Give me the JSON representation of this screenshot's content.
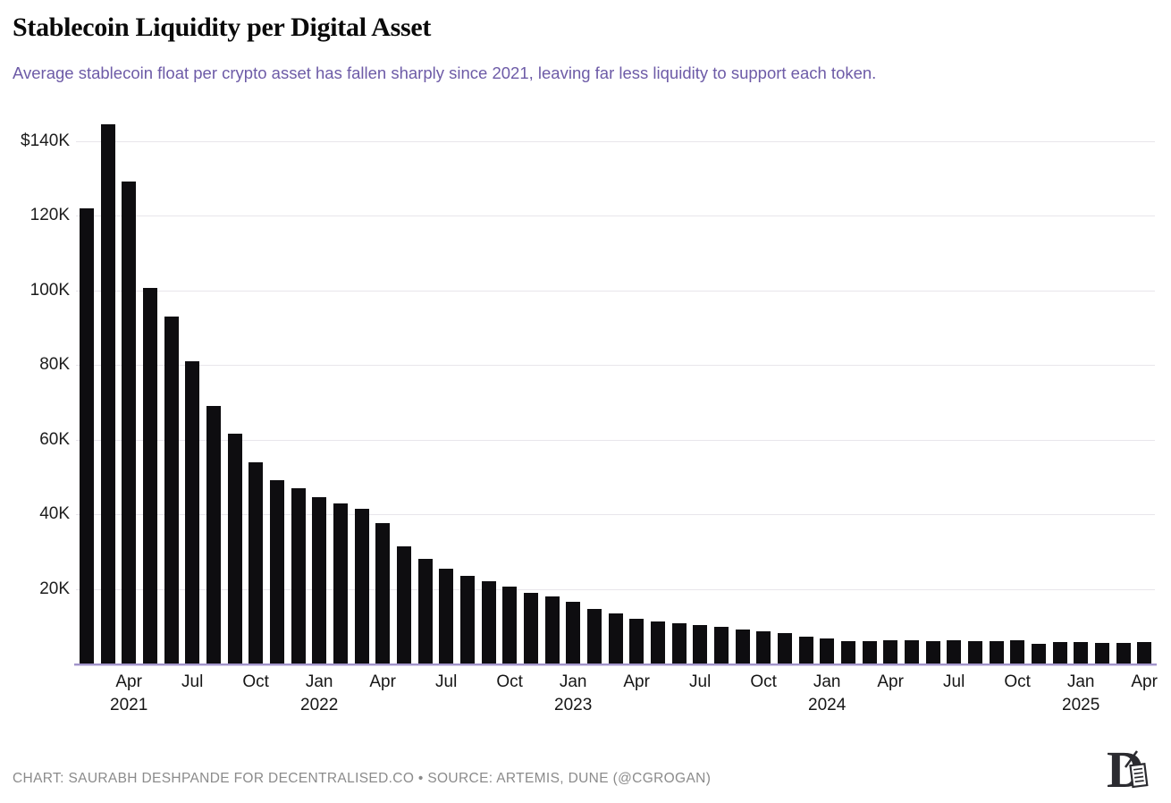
{
  "header": {
    "title": "Stablecoin Liquidity per Digital Asset",
    "subtitle": "Average stablecoin float per crypto asset has fallen sharply since 2021, leaving far less liquidity to support each token."
  },
  "footer": {
    "credit": "CHART: SAURABH DESHPANDE FOR DECENTRALISED.CO • SOURCE: ARTEMIS, DUNE (@CGROGAN)",
    "logo_name": "decentralised-d-logo"
  },
  "colors": {
    "bar": "#0e0d10",
    "subtitle": "#6d5ba7",
    "baseline": "#a294ca",
    "gridline": "#e8e6eb",
    "axis_text": "#1c1c1c",
    "footer_text": "#8b8b8b",
    "background": "#ffffff"
  },
  "chart_data": {
    "type": "bar",
    "title": "Stablecoin Liquidity per Digital Asset",
    "subtitle": "Average stablecoin float per crypto asset has fallen sharply since 2021, leaving far less liquidity to support each token.",
    "unit": "USD thousands per asset",
    "grid": "horizontal",
    "legend": "none",
    "ylim": [
      0,
      146.6
    ],
    "categories": [
      "Feb 2021",
      "Mar 2021",
      "Apr 2021",
      "May 2021",
      "Jun 2021",
      "Jul 2021",
      "Aug 2021",
      "Sep 2021",
      "Oct 2021",
      "Nov 2021",
      "Dec 2021",
      "Jan 2022",
      "Feb 2022",
      "Mar 2022",
      "Apr 2022",
      "May 2022",
      "Jun 2022",
      "Jul 2022",
      "Aug 2022",
      "Sep 2022",
      "Oct 2022",
      "Nov 2022",
      "Dec 2022",
      "Jan 2023",
      "Feb 2023",
      "Mar 2023",
      "Apr 2023",
      "May 2023",
      "Jun 2023",
      "Jul 2023",
      "Aug 2023",
      "Sep 2023",
      "Oct 2023",
      "Nov 2023",
      "Dec 2023",
      "Jan 2024",
      "Feb 2024",
      "Mar 2024",
      "Apr 2024",
      "May 2024",
      "Jun 2024",
      "Jul 2024",
      "Aug 2024",
      "Sep 2024",
      "Oct 2024",
      "Nov 2024",
      "Dec 2024",
      "Jan 2025",
      "Feb 2025",
      "Mar 2025",
      "Apr 2025"
    ],
    "values": [
      122,
      144.5,
      129,
      100.5,
      93,
      81,
      69,
      61.5,
      54,
      49,
      47,
      44.5,
      43,
      41.5,
      37.5,
      31.5,
      28,
      25.5,
      23.5,
      22,
      20.5,
      19,
      18,
      16.5,
      14.5,
      13.5,
      12,
      11.2,
      10.7,
      10.2,
      9.8,
      9,
      8.6,
      8.1,
      7.1,
      6.7,
      6,
      6,
      6.2,
      6.3,
      6,
      6.2,
      6,
      6,
      6.2,
      5.2,
      5.7,
      5.7,
      5.5,
      5.5,
      5.7
    ],
    "y_ticks": [
      {
        "value": 140,
        "label": "$140K"
      },
      {
        "value": 120,
        "label": "120K"
      },
      {
        "value": 100,
        "label": "100K"
      },
      {
        "value": 80,
        "label": "80K"
      },
      {
        "value": 60,
        "label": "60K"
      },
      {
        "value": 40,
        "label": "40K"
      },
      {
        "value": 20,
        "label": "20K"
      }
    ],
    "x_ticks": [
      {
        "index": 2,
        "month": "Apr",
        "year": "2021"
      },
      {
        "index": 5,
        "month": "Jul"
      },
      {
        "index": 8,
        "month": "Oct"
      },
      {
        "index": 11,
        "month": "Jan",
        "year": "2022"
      },
      {
        "index": 14,
        "month": "Apr"
      },
      {
        "index": 17,
        "month": "Jul"
      },
      {
        "index": 20,
        "month": "Oct"
      },
      {
        "index": 23,
        "month": "Jan",
        "year": "2023"
      },
      {
        "index": 26,
        "month": "Apr"
      },
      {
        "index": 29,
        "month": "Jul"
      },
      {
        "index": 32,
        "month": "Oct"
      },
      {
        "index": 35,
        "month": "Jan",
        "year": "2024"
      },
      {
        "index": 38,
        "month": "Apr"
      },
      {
        "index": 41,
        "month": "Jul"
      },
      {
        "index": 44,
        "month": "Oct"
      },
      {
        "index": 47,
        "month": "Jan",
        "year": "2025"
      },
      {
        "index": 50,
        "month": "Apr"
      }
    ]
  }
}
